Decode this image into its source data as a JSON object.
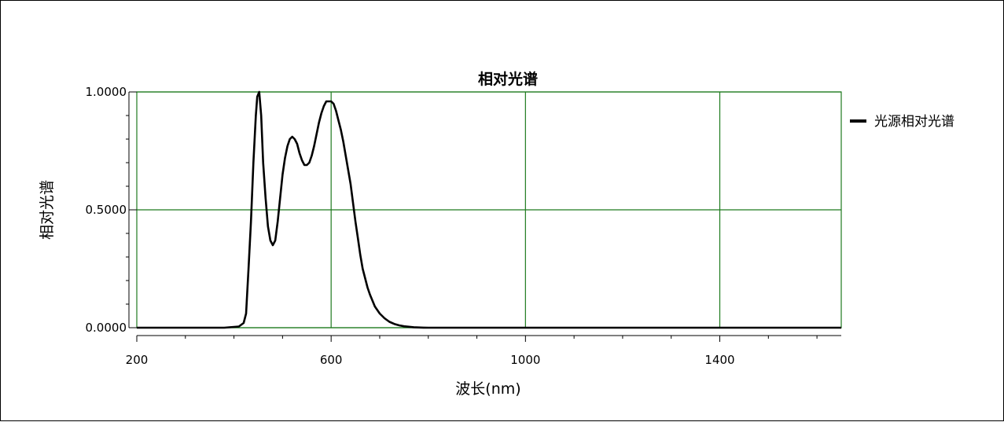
{
  "chart_data": {
    "type": "line",
    "title": "相对光谱",
    "xlabel": "波长(nm)",
    "ylabel": "相对光谱",
    "xlim": [
      200,
      1650
    ],
    "ylim": [
      0,
      1
    ],
    "x_ticks": [
      200,
      600,
      1000,
      1400
    ],
    "x_tick_labels": [
      "200",
      "600",
      "1000",
      "1400"
    ],
    "y_ticks": [
      0,
      0.5,
      1
    ],
    "y_tick_labels": [
      "0.0000",
      "0.5000",
      "1.0000"
    ],
    "grid": true,
    "grid_color": "#1e7a1e",
    "legend_position": "right",
    "series": [
      {
        "name": "光源相对光谱",
        "color": "#000000",
        "x": [
          200,
          380,
          410,
          420,
          425,
          430,
          435,
          440,
          445,
          448,
          452,
          456,
          460,
          465,
          470,
          475,
          480,
          485,
          490,
          495,
          500,
          505,
          510,
          515,
          520,
          525,
          530,
          535,
          540,
          545,
          550,
          555,
          560,
          565,
          570,
          575,
          580,
          585,
          590,
          595,
          600,
          605,
          610,
          615,
          620,
          625,
          630,
          635,
          640,
          645,
          650,
          655,
          660,
          665,
          670,
          675,
          680,
          690,
          700,
          710,
          720,
          730,
          740,
          750,
          760,
          770,
          780,
          790,
          800,
          1650
        ],
        "y": [
          0,
          0,
          0.005,
          0.02,
          0.06,
          0.25,
          0.45,
          0.7,
          0.9,
          0.98,
          1.0,
          0.9,
          0.7,
          0.55,
          0.43,
          0.37,
          0.35,
          0.37,
          0.45,
          0.55,
          0.65,
          0.72,
          0.77,
          0.8,
          0.81,
          0.8,
          0.78,
          0.74,
          0.71,
          0.69,
          0.69,
          0.7,
          0.73,
          0.77,
          0.82,
          0.87,
          0.91,
          0.94,
          0.96,
          0.96,
          0.96,
          0.95,
          0.92,
          0.88,
          0.84,
          0.79,
          0.73,
          0.67,
          0.61,
          0.53,
          0.45,
          0.38,
          0.31,
          0.25,
          0.21,
          0.17,
          0.14,
          0.09,
          0.06,
          0.04,
          0.025,
          0.016,
          0.01,
          0.006,
          0.004,
          0.002,
          0.001,
          0.0005,
          0,
          0
        ]
      }
    ]
  }
}
